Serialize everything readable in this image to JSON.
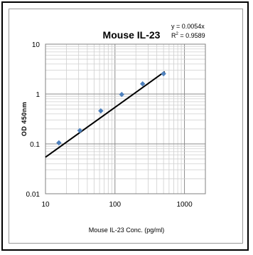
{
  "chart_data": {
    "type": "scatter",
    "title": "Mouse IL-23",
    "xlabel": "Mouse IL-23 Conc. (pg/ml)",
    "ylabel": "OD 450nm",
    "x_scale": "log",
    "y_scale": "log",
    "xlim": [
      10,
      2000
    ],
    "ylim": [
      0.01,
      10
    ],
    "x_ticks": [
      10,
      100,
      1000
    ],
    "x_tick_labels": [
      "10",
      "100",
      "1000"
    ],
    "y_ticks": [
      0.01,
      0.1,
      1,
      10
    ],
    "y_tick_labels": [
      "0.01",
      "0.1",
      "1",
      "10"
    ],
    "grid": true,
    "series": [
      {
        "x": [
          15.6,
          31.25,
          62.5,
          125,
          250,
          500
        ],
        "y": [
          0.105,
          0.185,
          0.46,
          0.98,
          1.6,
          2.55
        ],
        "color": "#4f81bd"
      }
    ],
    "trendline": {
      "equation": "y = 0.0054x",
      "r_squared_prefix": "R",
      "r_squared_exp": "2",
      "r_squared_value": " = 0.9589",
      "x_range": [
        10,
        520
      ],
      "slope": 0.0054,
      "color": "#000000"
    }
  }
}
